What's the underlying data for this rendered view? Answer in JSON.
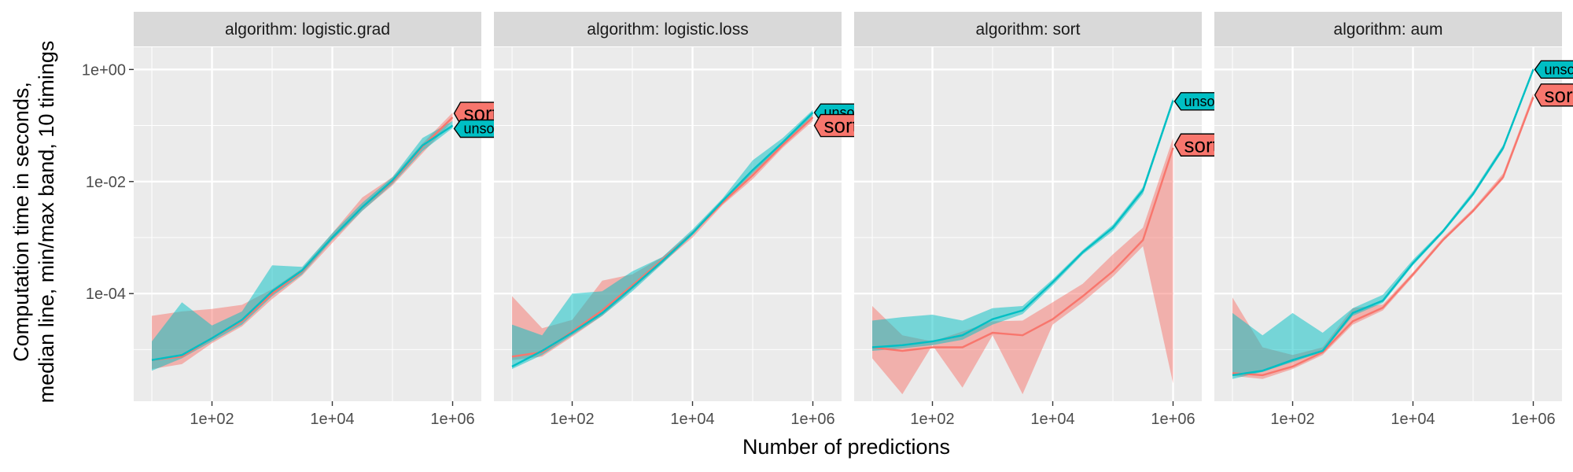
{
  "chart_data": {
    "type": "line",
    "xlabel": "Number of predictions",
    "ylabel_lines": [
      "Computation time in seconds,",
      "median line, min/max band, 10 timings"
    ],
    "x_scale": "log10",
    "y_scale": "log10",
    "xlim": [
      5,
      3000000
    ],
    "ylim": [
      1.2e-06,
      2.5
    ],
    "x_ticks": [
      100,
      10000,
      1000000
    ],
    "x_tick_labels": [
      "1e+02",
      "1e+04",
      "1e+06"
    ],
    "y_ticks": [
      0.0001,
      0.01,
      1
    ],
    "y_tick_labels": [
      "1e-04",
      "1e-02",
      "1e+00"
    ],
    "grid": true,
    "colors": {
      "sorted": "#F8766D",
      "unsorted": "#00BFC4",
      "panel_bg": "#EBEBEB",
      "strip_bg": "#D9D9D9",
      "grid": "#FFFFFF"
    },
    "x": [
      10,
      31.6,
      100,
      316,
      1000,
      3160,
      10000,
      31600,
      100000,
      316000,
      1000000
    ],
    "panels": [
      {
        "strip": "algorithm: logistic.grad",
        "series": [
          {
            "name": "sorted",
            "median": [
              6.5e-06,
              7.5e-06,
              1.6e-05,
              3.2e-05,
              0.0001,
              0.00025,
              0.001,
              0.0035,
              0.01,
              0.042,
              0.14
            ],
            "min": [
              4.5e-06,
              5.5e-06,
              1.3e-05,
              2.6e-05,
              8e-05,
              0.00021,
              0.0008,
              0.003,
              0.0085,
              0.032,
              0.12
            ],
            "max": [
              4e-05,
              4.8e-05,
              5.3e-05,
              6.3e-05,
              0.00012,
              0.00028,
              0.0012,
              0.0052,
              0.012,
              0.048,
              0.17
            ]
          },
          {
            "name": "unsorted",
            "median": [
              6.5e-06,
              8e-06,
              1.6e-05,
              3.4e-05,
              0.00011,
              0.00026,
              0.001,
              0.0035,
              0.0105,
              0.044,
              0.1
            ],
            "min": [
              4.2e-06,
              7e-06,
              1.4e-05,
              2.8e-05,
              9e-05,
              0.00022,
              0.0009,
              0.003,
              0.009,
              0.035,
              0.09
            ],
            "max": [
              1.4e-05,
              7e-05,
              2.7e-05,
              4.8e-05,
              0.00032,
              0.0003,
              0.0012,
              0.0042,
              0.012,
              0.06,
              0.12
            ]
          }
        ],
        "labels": [
          {
            "series": "sorted",
            "text": "sorted",
            "y": 0.165,
            "size": "big"
          },
          {
            "series": "unsorted",
            "text": "unsorted",
            "y": 0.088,
            "size": "small"
          }
        ]
      },
      {
        "strip": "algorithm: logistic.loss",
        "series": [
          {
            "name": "sorted",
            "median": [
              7.5e-06,
              9e-06,
              2.1e-05,
              5e-05,
              0.00014,
              0.0004,
              0.0012,
              0.0042,
              0.013,
              0.045,
              0.14
            ],
            "min": [
              6.5e-06,
              7.5e-06,
              1.7e-05,
              4e-05,
              0.00012,
              0.00035,
              0.001,
              0.0038,
              0.011,
              0.04,
              0.12
            ],
            "max": [
              9e-05,
              2.4e-05,
              3.4e-05,
              0.00017,
              0.00022,
              0.00045,
              0.0013,
              0.0048,
              0.015,
              0.05,
              0.16
            ]
          },
          {
            "name": "unsorted",
            "median": [
              5e-06,
              9.5e-06,
              2e-05,
              4.5e-05,
              0.00013,
              0.00038,
              0.0012,
              0.0045,
              0.016,
              0.05,
              0.17
            ],
            "min": [
              4.5e-06,
              8e-06,
              1.8e-05,
              4e-05,
              0.00011,
              0.00034,
              0.0011,
              0.0042,
              0.014,
              0.045,
              0.15
            ],
            "max": [
              2.8e-05,
              1.8e-05,
              0.0001,
              0.00011,
              0.00025,
              0.00045,
              0.0014,
              0.005,
              0.024,
              0.06,
              0.19
            ]
          }
        ],
        "labels": [
          {
            "series": "unsorted",
            "text": "unsorted",
            "y": 0.17,
            "size": "small"
          },
          {
            "series": "sorted",
            "text": "sorted",
            "y": 0.1,
            "size": "big"
          }
        ]
      },
      {
        "strip": "algorithm: sort",
        "series": [
          {
            "name": "sorted",
            "median": [
              1.1e-05,
              9.5e-06,
              1.1e-05,
              1.1e-05,
              2e-05,
              1.8e-05,
              3.5e-05,
              9e-05,
              0.00025,
              0.0009,
              0.04
            ],
            "min": [
              7e-06,
              1.6e-06,
              1.2e-05,
              2.1e-06,
              1.8e-05,
              1.6e-06,
              2.8e-05,
              7e-05,
              0.0002,
              0.0007,
              2.5e-06
            ],
            "max": [
              6e-05,
              1.8e-05,
              1.4e-05,
              2.1e-05,
              3.2e-05,
              3.3e-05,
              7e-05,
              0.00015,
              0.0005,
              0.0015,
              0.06
            ]
          },
          {
            "name": "unsorted",
            "median": [
              1.1e-05,
              1.2e-05,
              1.4e-05,
              1.8e-05,
              3.5e-05,
              5e-05,
              0.00016,
              0.00055,
              0.0015,
              0.007,
              0.28
            ],
            "min": [
              9.5e-06,
              1.05e-05,
              1.2e-05,
              1.5e-05,
              2.8e-05,
              4.3e-05,
              0.00014,
              0.0005,
              0.0013,
              0.006,
              0.25
            ],
            "max": [
              3.3e-05,
              3.8e-05,
              4.2e-05,
              3.3e-05,
              5.5e-05,
              6e-05,
              0.00018,
              0.0006,
              0.0017,
              0.008,
              0.32
            ]
          }
        ],
        "labels": [
          {
            "series": "unsorted",
            "text": "unsorted",
            "y": 0.27,
            "size": "small"
          },
          {
            "series": "sorted",
            "text": "sorted",
            "y": 0.045,
            "size": "big"
          }
        ]
      },
      {
        "strip": "algorithm: aum",
        "series": [
          {
            "name": "sorted",
            "median": [
              3.8e-06,
              3.5e-06,
              5e-06,
              9e-06,
              3.2e-05,
              5.6e-05,
              0.00022,
              0.0009,
              0.003,
              0.012,
              0.32
            ],
            "min": [
              3.4e-06,
              3e-06,
              4.5e-06,
              8e-06,
              2.8e-05,
              5e-05,
              0.0002,
              0.00085,
              0.0028,
              0.011,
              0.3
            ],
            "max": [
              8.5e-05,
              1.1e-05,
              8e-06,
              1.1e-05,
              5.5e-05,
              6.4e-05,
              0.00024,
              0.001,
              0.0033,
              0.014,
              0.38
            ]
          },
          {
            "name": "unsorted",
            "median": [
              3.5e-06,
              4.2e-06,
              6.5e-06,
              9.5e-06,
              4.5e-05,
              7.5e-05,
              0.00035,
              0.0013,
              0.006,
              0.04,
              1.0
            ],
            "min": [
              3e-06,
              4e-06,
              6e-06,
              9e-06,
              4e-05,
              6.8e-05,
              0.00032,
              0.0012,
              0.0055,
              0.036,
              0.9
            ],
            "max": [
              4.5e-05,
              1.8e-05,
              4.5e-05,
              2e-05,
              5.5e-05,
              9.5e-05,
              0.0004,
              0.0014,
              0.0068,
              0.045,
              1.1
            ]
          }
        ],
        "labels": [
          {
            "series": "unsorted",
            "text": "unsorted",
            "y": 1.0,
            "size": "small"
          },
          {
            "series": "sorted",
            "text": "sorted",
            "y": 0.35,
            "size": "big"
          }
        ]
      }
    ]
  }
}
